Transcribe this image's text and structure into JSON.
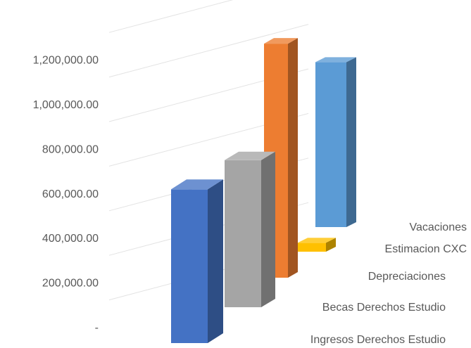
{
  "chart_data": {
    "type": "bar",
    "title": "",
    "xlabel": "",
    "ylabel": "",
    "three_d": true,
    "grid": true,
    "ylim": [
      0,
      1400000
    ],
    "y_ticks": [
      {
        "value": 0,
        "label": "-"
      },
      {
        "value": 200000,
        "label": "200,000.00"
      },
      {
        "value": 400000,
        "label": "400,000.00"
      },
      {
        "value": 600000,
        "label": "600,000.00"
      },
      {
        "value": 800000,
        "label": "800,000.00"
      },
      {
        "value": 1000000,
        "label": "1,000,000.00"
      },
      {
        "value": 1200000,
        "label": "1,200,000.00"
      }
    ],
    "categories": [
      "Ingresos Derechos Estudio",
      "Becas Derechos Estudio",
      "Depreciaciones",
      "Estimacion CXC",
      "Vacaciones"
    ],
    "values": [
      690000,
      660000,
      1050000,
      40000,
      740000
    ],
    "colors": [
      "#4472C4",
      "#A5A5A5",
      "#ED7D31",
      "#FFC000",
      "#5B9BD5"
    ]
  }
}
